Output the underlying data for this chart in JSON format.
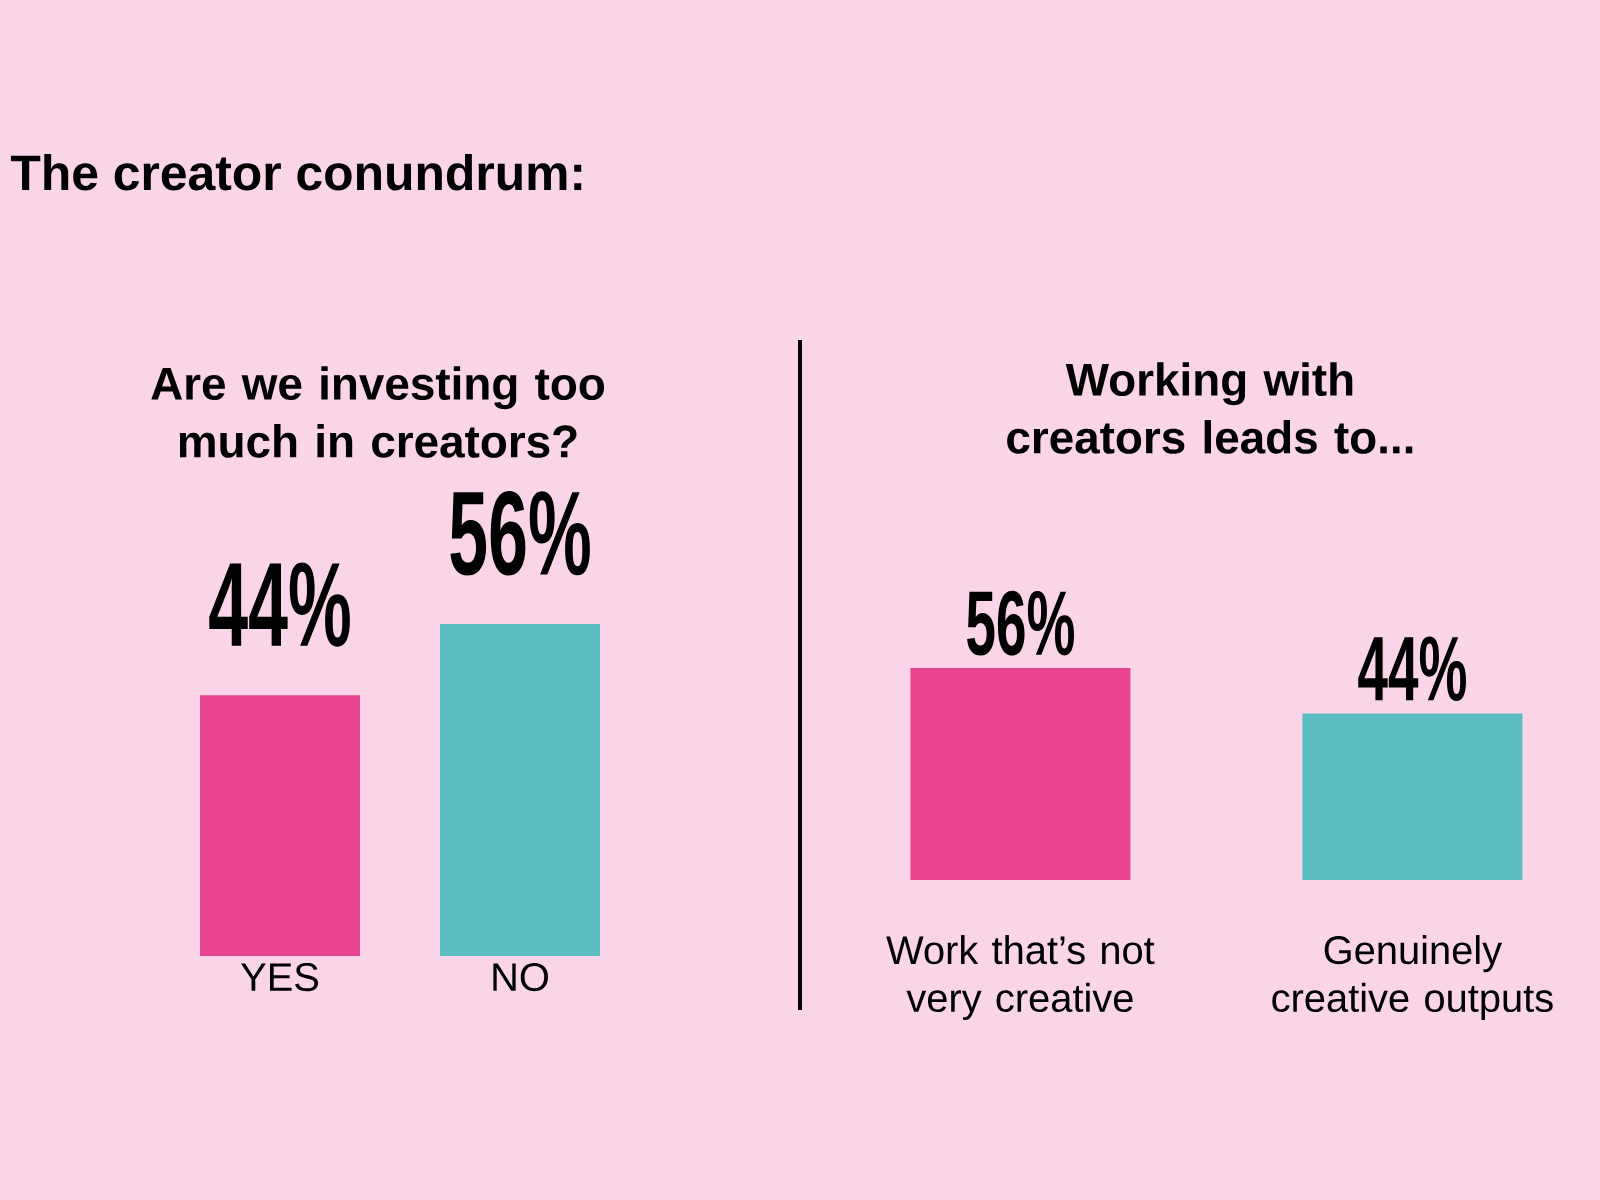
{
  "chart_data": [
    {
      "type": "other",
      "title": "The creator conundrum:"
    },
    {
      "type": "bar",
      "title": "Are we investing too much in creators?",
      "categories": [
        "YES",
        "NO"
      ],
      "values": [
        44,
        56
      ],
      "colors": [
        "#e9428e",
        "#5bbdc0"
      ],
      "value_labels": [
        "44%",
        "56%"
      ],
      "tick_labels": "x"
    },
    {
      "type": "bar",
      "title": "Working with creators leads to...",
      "categories": [
        "Work that’s not very creative",
        "Genuinely creative outputs"
      ],
      "values": [
        56,
        44
      ],
      "colors": [
        "#e9428e",
        "#5bbdc0"
      ],
      "value_labels": [
        "56%",
        "44%"
      ],
      "tick_labels": "x"
    }
  ]
}
